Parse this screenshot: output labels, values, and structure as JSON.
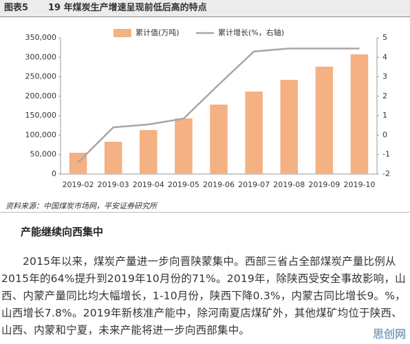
{
  "figure_label": "图表5",
  "chart_data": {
    "type": "bar-line",
    "title": "19 年煤炭生产增速呈现前低后高的特点",
    "categories": [
      "2019-02",
      "2019-03",
      "2019-04",
      "2019-05",
      "2019-06",
      "2019-07",
      "2019-08",
      "2019-09",
      "2019-10"
    ],
    "series": [
      {
        "name": "累计值(万吨)",
        "type": "bar",
        "color": "#f4b183",
        "values": [
          54800,
          83000,
          113000,
          143000,
          178500,
          212000,
          242000,
          276000,
          307500
        ]
      },
      {
        "name": "累计增长(%，右轴)",
        "type": "line",
        "axis": "y2",
        "color": "#a6a6a6",
        "values": [
          -1.4,
          0.4,
          0.55,
          0.85,
          2.6,
          4.3,
          4.45,
          4.45,
          4.45
        ]
      }
    ],
    "ylim": [
      0,
      350000
    ],
    "yticks": [
      0,
      {
        "value": 50000,
        "label": "50,000"
      },
      {
        "value": 100000,
        "label": "100,000"
      },
      {
        "value": 150000,
        "label": "150,000"
      },
      {
        "value": 200000,
        "label": "200,000"
      },
      {
        "value": 250000,
        "label": "250,000"
      },
      {
        "value": 300000,
        "label": "300,000"
      },
      {
        "value": 350000,
        "label": "350,000"
      }
    ],
    "y2lim": [
      -2,
      5
    ],
    "y2ticks": [
      -2,
      -1,
      0,
      1,
      2,
      3,
      4,
      5
    ],
    "legend": "top"
  },
  "source": "资料来源：中国煤炭市场网，平安证券研究所",
  "heading": "产能继续向西集中",
  "paragraph": "2015年以来，煤炭产量进一步向晋陕蒙集中。西部三省占全部煤炭产量比例从2015年的64%提升到2019年10月份的71%。2019年，除陕西受安全事故影响，山西、内蒙产量同比均大幅增长，1-10月份，陕西下降0.3%，内蒙古同比增长9。%，山西增长7.8%。2019年新核准产能中，除河南夏店煤矿外，其他煤矿均位于陕西、山西、内蒙和宁夏，未来产能将进一步向西部集中。",
  "watermark": "思创网"
}
